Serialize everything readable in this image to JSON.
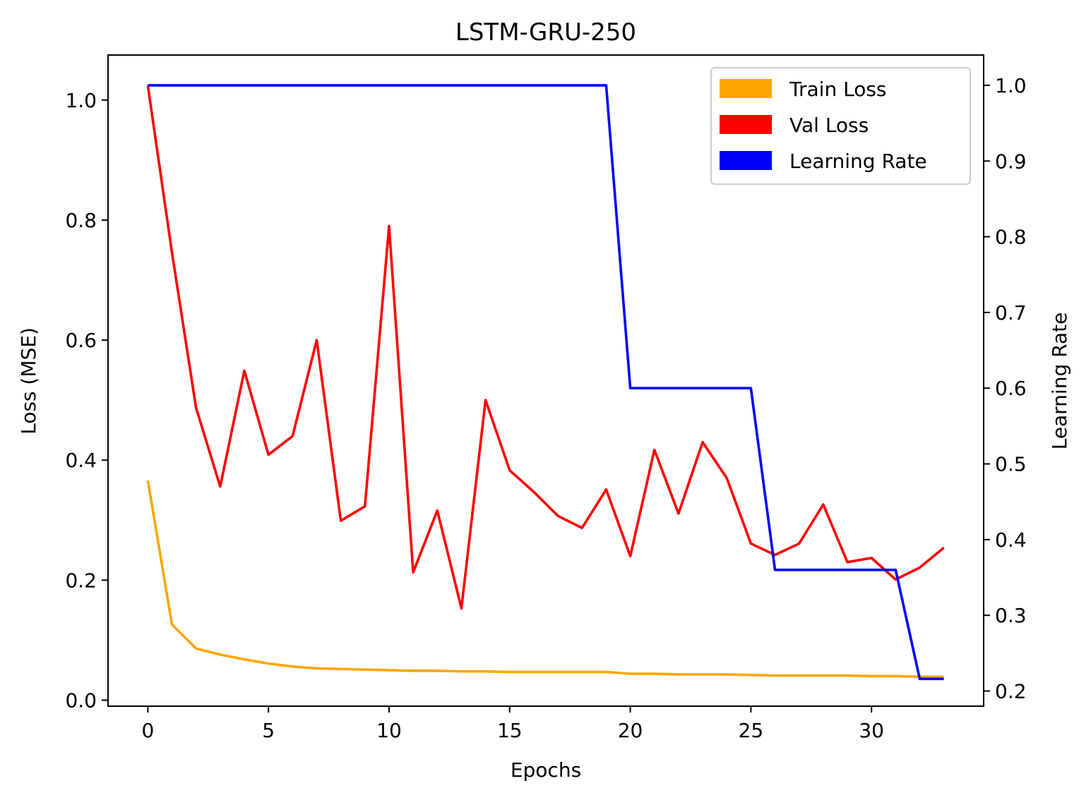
{
  "chart_data": {
    "type": "line",
    "title": "LSTM-GRU-250",
    "xlabel": "Epochs",
    "ylabel": "Loss (MSE)",
    "y2label": "Learning Rate",
    "xlim": [
      -1.65,
      34.65
    ],
    "ylim": [
      -0.01,
      1.075
    ],
    "y2lim": [
      0.18,
      1.04
    ],
    "xticks": [
      0,
      5,
      10,
      15,
      20,
      25,
      30
    ],
    "xtick_labels": [
      "0",
      "5",
      "10",
      "15",
      "20",
      "25",
      "30"
    ],
    "yticks": [
      0.0,
      0.2,
      0.4,
      0.6,
      0.8,
      1.0
    ],
    "ytick_labels": [
      "0.0",
      "0.2",
      "0.4",
      "0.6",
      "0.8",
      "1.0"
    ],
    "y2ticks": [
      0.2,
      0.3,
      0.4,
      0.5,
      0.6,
      0.7,
      0.8,
      0.9,
      1.0
    ],
    "y2tick_labels": [
      "0.2",
      "0.3",
      "0.4",
      "0.5",
      "0.6",
      "0.7",
      "0.8",
      "0.9",
      "1.0"
    ],
    "grid": false,
    "legend_position": "top-right",
    "x": [
      0,
      1,
      2,
      3,
      4,
      5,
      6,
      7,
      8,
      9,
      10,
      11,
      12,
      13,
      14,
      15,
      16,
      17,
      18,
      19,
      20,
      21,
      22,
      23,
      24,
      25,
      26,
      27,
      28,
      29,
      30,
      31,
      32,
      33
    ],
    "series": [
      {
        "name": "Train Loss",
        "axis": "left",
        "color": "#ffa500",
        "values": [
          0.366,
          0.126,
          0.086,
          0.076,
          0.068,
          0.061,
          0.056,
          0.053,
          0.052,
          0.051,
          0.05,
          0.049,
          0.049,
          0.048,
          0.048,
          0.047,
          0.047,
          0.047,
          0.047,
          0.047,
          0.044,
          0.044,
          0.043,
          0.043,
          0.043,
          0.042,
          0.041,
          0.041,
          0.041,
          0.041,
          0.04,
          0.04,
          0.039,
          0.039
        ]
      },
      {
        "name": "Val Loss",
        "axis": "left",
        "color": "#ff0000",
        "values": [
          1.024,
          0.746,
          0.487,
          0.356,
          0.549,
          0.409,
          0.44,
          0.6,
          0.299,
          0.323,
          0.79,
          0.213,
          0.316,
          0.153,
          0.5,
          0.383,
          0.347,
          0.307,
          0.287,
          0.351,
          0.24,
          0.417,
          0.311,
          0.43,
          0.37,
          0.261,
          0.242,
          0.261,
          0.326,
          0.23,
          0.237,
          0.201,
          0.221,
          0.254
        ]
      },
      {
        "name": "Learning Rate",
        "axis": "right",
        "color": "#0000ff",
        "values": [
          1.0,
          1.0,
          1.0,
          1.0,
          1.0,
          1.0,
          1.0,
          1.0,
          1.0,
          1.0,
          1.0,
          1.0,
          1.0,
          1.0,
          1.0,
          1.0,
          1.0,
          1.0,
          1.0,
          1.0,
          0.6,
          0.6,
          0.6,
          0.6,
          0.6,
          0.6,
          0.36,
          0.36,
          0.36,
          0.36,
          0.36,
          0.36,
          0.216,
          0.216
        ]
      }
    ]
  }
}
